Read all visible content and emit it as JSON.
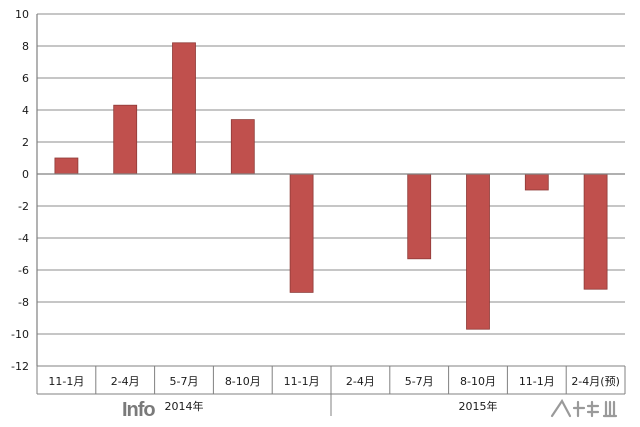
{
  "chart_data": {
    "type": "bar",
    "categories": [
      "11-1月",
      "2-4月",
      "5-7月",
      "8-10月",
      "11-1月",
      "2-4月",
      "5-7月",
      "8-10月",
      "11-1月",
      "2-4月(预)"
    ],
    "groups": [
      {
        "label": "2014年",
        "span": 5
      },
      {
        "label": "2015年",
        "span": 5
      }
    ],
    "series": [
      {
        "values": [
          1.0,
          4.3,
          8.2,
          3.4,
          -7.4,
          0,
          -5.3,
          -9.7,
          -1.0,
          -7.2
        ]
      }
    ],
    "ylim": [
      -12,
      10
    ],
    "yticks": [
      10,
      8,
      6,
      4,
      2,
      0,
      -2,
      -4,
      -6,
      -8,
      -10,
      -12
    ],
    "grid": true,
    "legend": "none"
  },
  "colors": {
    "bar_fill": "#c0504d",
    "bar_stroke": "#8e3a37",
    "grid": "#8c8c8c",
    "axis": "#808080"
  },
  "watermarks": {
    "left_text": "Info",
    "right_text": "www.FFWAP.com"
  }
}
